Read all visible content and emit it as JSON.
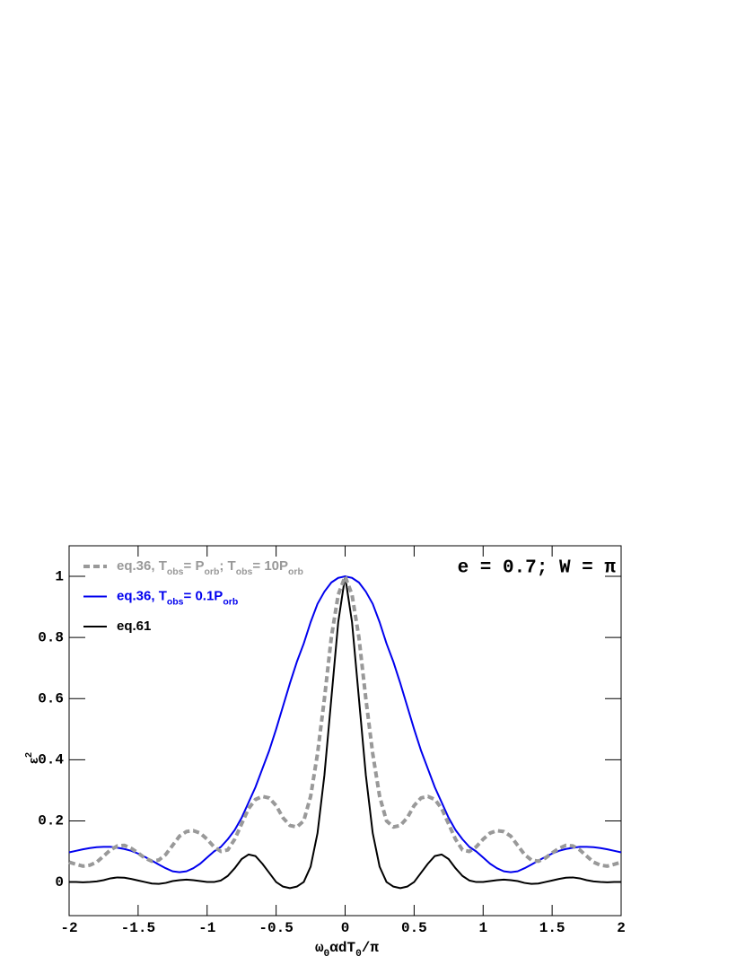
{
  "chart_data": {
    "type": "line",
    "annotation": "e = 0.7; W = π",
    "xlabel": [
      "ω",
      {
        "sub": "0"
      },
      "αdT",
      {
        "sub": "0"
      },
      "/π"
    ],
    "ylabel": [
      "ε",
      {
        "sup": "2"
      }
    ],
    "x": [
      -2,
      -1.95,
      -1.9,
      -1.85,
      -1.8,
      -1.75,
      -1.7,
      -1.65,
      -1.6,
      -1.55,
      -1.5,
      -1.45,
      -1.4,
      -1.35,
      -1.3,
      -1.25,
      -1.2,
      -1.15,
      -1.1,
      -1.05,
      -1,
      -0.95,
      -0.9,
      -0.85,
      -0.8,
      -0.75,
      -0.7,
      -0.65,
      -0.6,
      -0.55,
      -0.5,
      -0.45,
      -0.4,
      -0.35,
      -0.3,
      -0.25,
      -0.2,
      -0.15,
      -0.1,
      -0.05,
      0,
      0.05,
      0.1,
      0.15,
      0.2,
      0.25,
      0.3,
      0.35,
      0.4,
      0.45,
      0.5,
      0.55,
      0.6,
      0.65,
      0.7,
      0.75,
      0.8,
      0.85,
      0.9,
      0.95,
      1,
      1.05,
      1.1,
      1.15,
      1.2,
      1.25,
      1.3,
      1.35,
      1.4,
      1.45,
      1.5,
      1.55,
      1.6,
      1.65,
      1.7,
      1.75,
      1.8,
      1.85,
      1.9,
      1.95,
      2
    ],
    "series": [
      {
        "name": [
          "eq.36, T",
          {
            "sub": "obs"
          },
          "= P",
          {
            "sub": "orb"
          },
          "; T",
          {
            "sub": "obs"
          },
          "= 10P",
          {
            "sub": "orb"
          }
        ],
        "color": "#999999",
        "dashed": true,
        "values": [
          0.065,
          0.058,
          0.052,
          0.055,
          0.065,
          0.085,
          0.105,
          0.118,
          0.12,
          0.11,
          0.095,
          0.078,
          0.068,
          0.072,
          0.09,
          0.12,
          0.15,
          0.165,
          0.168,
          0.16,
          0.14,
          0.115,
          0.1,
          0.105,
          0.14,
          0.19,
          0.24,
          0.27,
          0.28,
          0.275,
          0.25,
          0.21,
          0.185,
          0.18,
          0.2,
          0.28,
          0.42,
          0.6,
          0.8,
          0.94,
          1.0,
          0.94,
          0.8,
          0.6,
          0.42,
          0.28,
          0.2,
          0.18,
          0.185,
          0.21,
          0.25,
          0.275,
          0.28,
          0.27,
          0.24,
          0.19,
          0.14,
          0.105,
          0.1,
          0.115,
          0.14,
          0.16,
          0.168,
          0.165,
          0.15,
          0.12,
          0.09,
          0.072,
          0.068,
          0.078,
          0.095,
          0.11,
          0.12,
          0.118,
          0.105,
          0.085,
          0.065,
          0.055,
          0.052,
          0.058,
          0.065
        ]
      },
      {
        "name": [
          "eq.36, T",
          {
            "sub": "obs"
          },
          "= 0.1P",
          {
            "sub": "orb"
          }
        ],
        "color": "#0000ee",
        "dashed": false,
        "values": [
          0.097,
          0.102,
          0.107,
          0.111,
          0.114,
          0.115,
          0.115,
          0.112,
          0.108,
          0.102,
          0.093,
          0.082,
          0.07,
          0.057,
          0.045,
          0.035,
          0.032,
          0.035,
          0.045,
          0.06,
          0.08,
          0.1,
          0.115,
          0.14,
          0.17,
          0.21,
          0.26,
          0.31,
          0.37,
          0.43,
          0.5,
          0.575,
          0.65,
          0.72,
          0.78,
          0.85,
          0.91,
          0.95,
          0.98,
          0.995,
          1.0,
          0.995,
          0.98,
          0.95,
          0.91,
          0.85,
          0.78,
          0.72,
          0.65,
          0.575,
          0.5,
          0.43,
          0.37,
          0.31,
          0.26,
          0.21,
          0.17,
          0.14,
          0.115,
          0.1,
          0.08,
          0.06,
          0.045,
          0.035,
          0.032,
          0.035,
          0.045,
          0.057,
          0.07,
          0.082,
          0.093,
          0.102,
          0.108,
          0.112,
          0.115,
          0.115,
          0.114,
          0.111,
          0.107,
          0.102,
          0.097
        ]
      },
      {
        "name": [
          "eq.61"
        ],
        "color": "#000000",
        "dashed": false,
        "values": [
          0.0,
          0.0,
          -0.001,
          0.0,
          0.002,
          0.006,
          0.012,
          0.015,
          0.014,
          0.01,
          0.005,
          0.0,
          -0.005,
          -0.006,
          -0.003,
          0.003,
          0.006,
          0.008,
          0.006,
          0.003,
          0.0,
          0.0,
          0.005,
          0.02,
          0.045,
          0.075,
          0.09,
          0.085,
          0.06,
          0.03,
          0.0,
          -0.015,
          -0.02,
          -0.015,
          0.0,
          0.05,
          0.16,
          0.35,
          0.6,
          0.85,
          1.0,
          0.85,
          0.6,
          0.35,
          0.16,
          0.05,
          0.0,
          -0.015,
          -0.02,
          -0.015,
          0.0,
          0.03,
          0.06,
          0.085,
          0.09,
          0.075,
          0.045,
          0.02,
          0.005,
          0.0,
          0.0,
          0.003,
          0.006,
          0.008,
          0.006,
          0.003,
          -0.003,
          -0.006,
          -0.005,
          0.0,
          0.005,
          0.01,
          0.014,
          0.015,
          0.012,
          0.006,
          0.002,
          0.0,
          -0.001,
          0.0,
          0.0
        ]
      }
    ],
    "xlim": [
      -2,
      2
    ],
    "xticks": [
      -2,
      -1.5,
      -1,
      -0.5,
      0,
      0.5,
      1,
      1.5,
      2
    ],
    "ylim": [
      -0.11,
      1.1
    ],
    "yticks": [
      0,
      0.2,
      0.4,
      0.6,
      0.8,
      1
    ],
    "grid": false,
    "legend": "top-left"
  }
}
